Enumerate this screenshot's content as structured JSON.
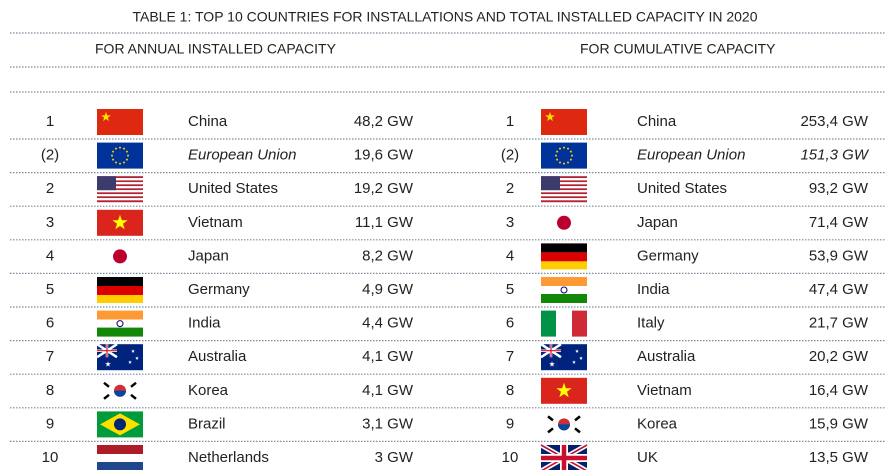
{
  "title": "TABLE 1: TOP 10 COUNTRIES FOR INSTALLATIONS AND TOTAL INSTALLED CAPACITY IN 2020",
  "left": {
    "heading": "FOR ANNUAL INSTALLED CAPACITY",
    "rows": [
      [
        "1",
        "China",
        "48,2 GW"
      ],
      [
        "(2)",
        "European Union",
        "19,6 GW"
      ],
      [
        "2",
        "United States",
        "19,2 GW"
      ],
      [
        "3",
        "Vietnam",
        "11,1 GW"
      ],
      [
        "4",
        "Japan",
        "8,2 GW"
      ],
      [
        "5",
        "Germany",
        "4,9 GW"
      ],
      [
        "6",
        "India",
        "4,4 GW"
      ],
      [
        "7",
        "Australia",
        "4,1 GW"
      ],
      [
        "8",
        "Korea",
        "4,1 GW"
      ],
      [
        "9",
        "Brazil",
        "3,1 GW"
      ],
      [
        "10",
        "Netherlands",
        "3 GW"
      ]
    ]
  },
  "right": {
    "heading": "FOR CUMULATIVE CAPACITY",
    "rows": [
      [
        "1",
        "China",
        "253,4 GW"
      ],
      [
        "(2)",
        "European Union",
        "151,3 GW"
      ],
      [
        "2",
        "United States",
        "93,2 GW"
      ],
      [
        "3",
        "Japan",
        "71,4 GW"
      ],
      [
        "4",
        "Germany",
        "53,9 GW"
      ],
      [
        "5",
        "India",
        "47,4 GW"
      ],
      [
        "6",
        "Italy",
        "21,7 GW"
      ],
      [
        "7",
        "Australia",
        "20,2 GW"
      ],
      [
        "8",
        "Vietnam",
        "16,4 GW"
      ],
      [
        "9",
        "Korea",
        "15,9 GW"
      ],
      [
        "10",
        "UK",
        "13,5 GW"
      ]
    ]
  }
}
